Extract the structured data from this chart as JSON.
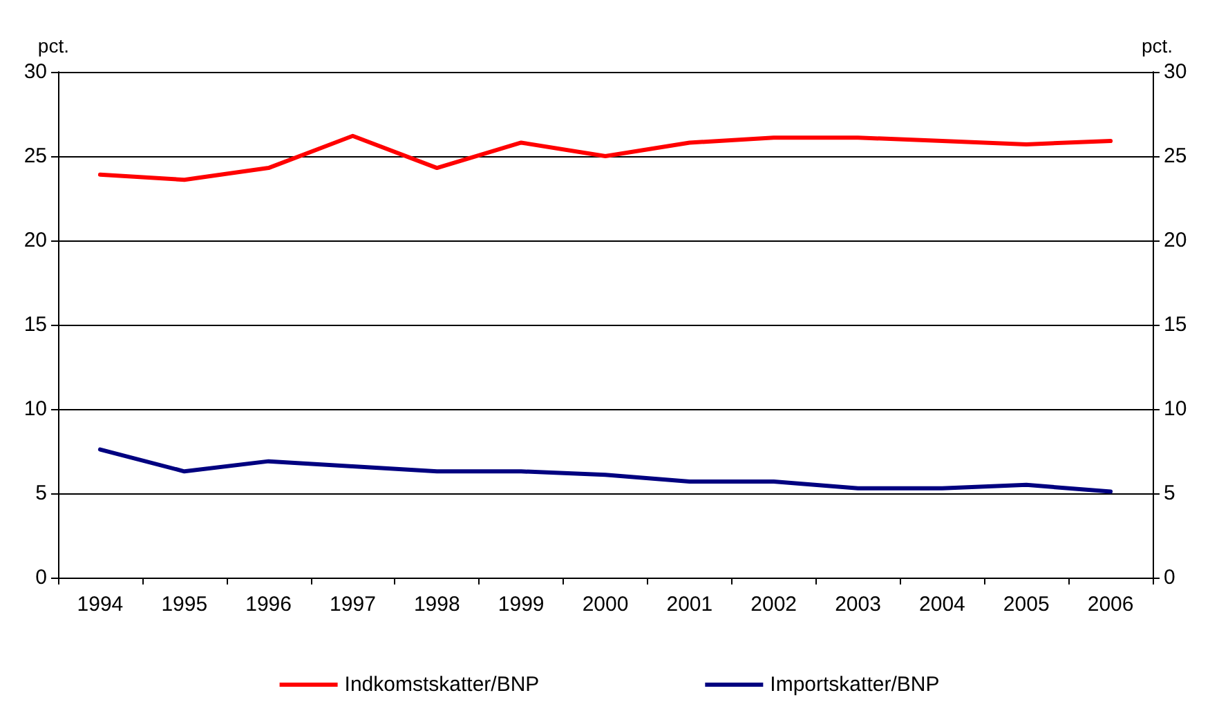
{
  "chart_data": {
    "type": "line",
    "categories": [
      "1994",
      "1995",
      "1996",
      "1997",
      "1998",
      "1999",
      "2000",
      "2001",
      "2002",
      "2003",
      "2004",
      "2005",
      "2006"
    ],
    "series": [
      {
        "name": "Indkomstskatter/BNP",
        "color": "#ff0000",
        "values": [
          23.9,
          23.6,
          24.3,
          26.2,
          24.3,
          25.8,
          25.0,
          25.8,
          26.1,
          26.1,
          25.9,
          25.7,
          25.9
        ]
      },
      {
        "name": "Importskatter/BNP",
        "color": "#000080",
        "values": [
          7.6,
          6.3,
          6.9,
          6.6,
          6.3,
          6.3,
          6.1,
          5.7,
          5.7,
          5.3,
          5.3,
          5.5,
          5.1
        ]
      }
    ],
    "ylabel": "pct.",
    "y2label": "pct.",
    "ylim": [
      0,
      30
    ],
    "yticks": [
      0,
      5,
      10,
      15,
      20,
      25,
      30
    ],
    "y2lim": [
      0,
      30
    ],
    "y2ticks": [
      0,
      5,
      10,
      15,
      20,
      25,
      30
    ],
    "grid": "y",
    "legend": "bottom",
    "marker": "none",
    "line_style": "solid"
  }
}
